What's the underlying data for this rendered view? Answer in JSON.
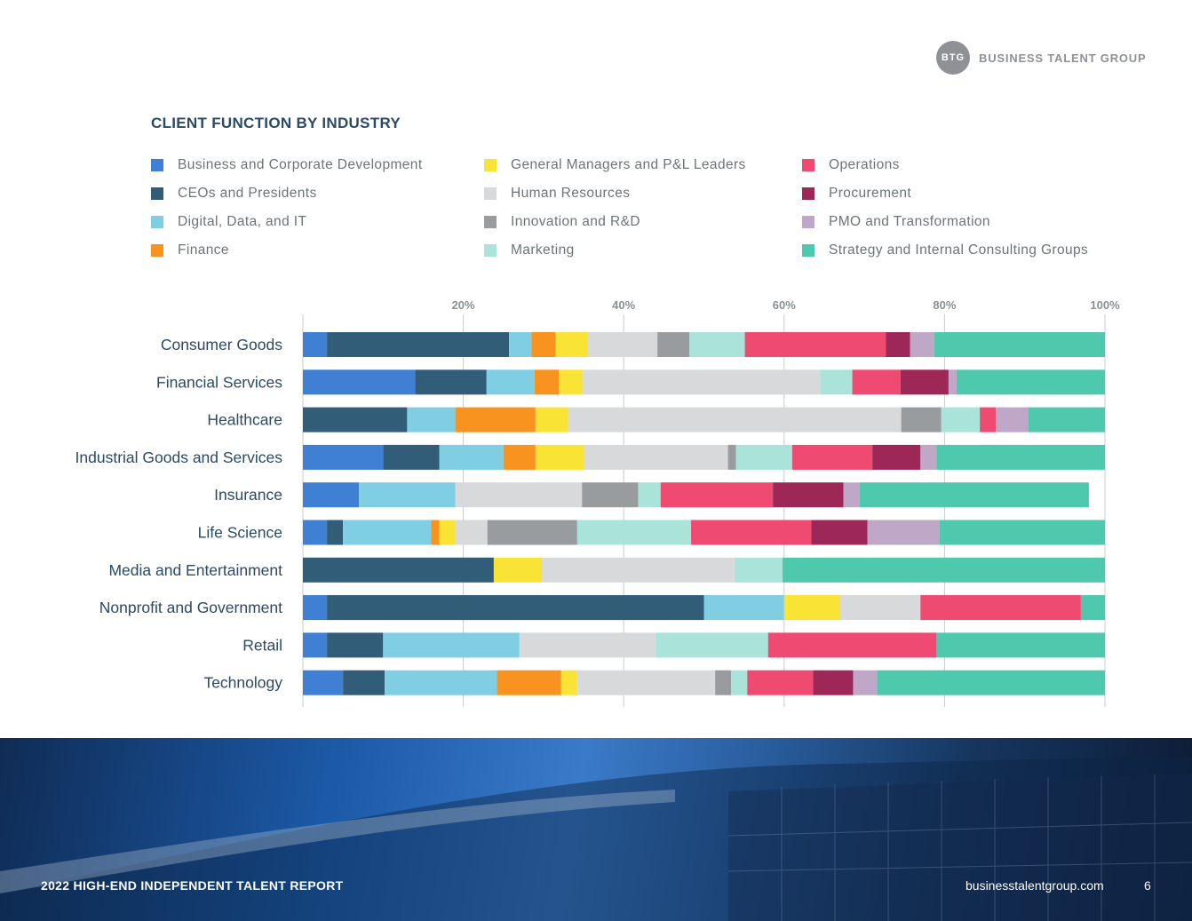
{
  "brand": {
    "badge_text": "BTG",
    "name": "BUSINESS TALENT GROUP",
    "badge_color": "#8e9296"
  },
  "footer": {
    "report_title": "2022 HIGH-END INDEPENDENT TALENT REPORT",
    "url": "businesstalentgroup.com",
    "page_number": "6"
  },
  "chart_data": {
    "type": "bar",
    "orientation": "horizontal",
    "stacked": true,
    "normalized": true,
    "title": "CLIENT FUNCTION BY INDUSTRY",
    "xlabel": "",
    "ylabel": "",
    "xlim": [
      0,
      100
    ],
    "xticks": [
      20,
      40,
      60,
      80,
      100
    ],
    "xtick_labels": [
      "20%",
      "40%",
      "60%",
      "80%",
      "100%"
    ],
    "grid": true,
    "legend_position": "top",
    "categories": [
      "Consumer Goods",
      "Financial Services",
      "Healthcare",
      "Industrial Goods and Services",
      "Insurance",
      "Life Science",
      "Media and Entertainment",
      "Nonprofit and Government",
      "Retail",
      "Technology"
    ],
    "series": [
      {
        "name": "Business and Corporate Development",
        "color": "#3f7fd4",
        "values": [
          3,
          14,
          0,
          10,
          7,
          3,
          0,
          3,
          3,
          5
        ]
      },
      {
        "name": "CEOs and Presidents",
        "color": "#325d78",
        "values": [
          22.7,
          8.9,
          13,
          7,
          0,
          2,
          23.8,
          47,
          7,
          5.2
        ]
      },
      {
        "name": "Digital, Data, and IT",
        "color": "#80cee4",
        "values": [
          2.8,
          6,
          6,
          8,
          12,
          11,
          0,
          10,
          17,
          14
        ]
      },
      {
        "name": "Finance",
        "color": "#f7931e",
        "values": [
          3,
          3,
          10,
          4,
          0,
          1,
          0,
          0,
          0,
          8
        ]
      },
      {
        "name": "General Managers and P&L Leaders",
        "color": "#f9e436",
        "values": [
          4,
          3,
          4,
          6,
          0,
          2,
          6,
          7,
          0,
          2
        ]
      },
      {
        "name": "Human Resources",
        "color": "#d7d9da",
        "values": [
          8.7,
          29.6,
          41.6,
          18,
          15.8,
          4,
          24,
          10,
          17,
          17.2
        ]
      },
      {
        "name": "Innovation and R&D",
        "color": "#989c9f",
        "values": [
          4,
          0,
          5,
          1,
          7,
          11.2,
          0,
          0,
          0,
          2
        ]
      },
      {
        "name": "Marketing",
        "color": "#a9e3da",
        "values": [
          6.9,
          4,
          4.8,
          7,
          2.8,
          14.2,
          6,
          0,
          14,
          2
        ]
      },
      {
        "name": "Operations",
        "color": "#ee4a72",
        "values": [
          17.6,
          6,
          2,
          10,
          14,
          15,
          0,
          20,
          21,
          8.2
        ]
      },
      {
        "name": "Procurement",
        "color": "#9d2857",
        "values": [
          3,
          6,
          0,
          6,
          8.8,
          7,
          0,
          0,
          0,
          5
        ]
      },
      {
        "name": "PMO and Transformation",
        "color": "#bfa7c8",
        "values": [
          3,
          1,
          4,
          2,
          2,
          9,
          0,
          0,
          0,
          3
        ]
      },
      {
        "name": "Strategy and Internal Consulting Groups",
        "color": "#4fc9ad",
        "values": [
          21.3,
          18.5,
          9.6,
          21,
          28.6,
          20.6,
          40.2,
          3,
          21,
          28.4
        ]
      }
    ]
  }
}
